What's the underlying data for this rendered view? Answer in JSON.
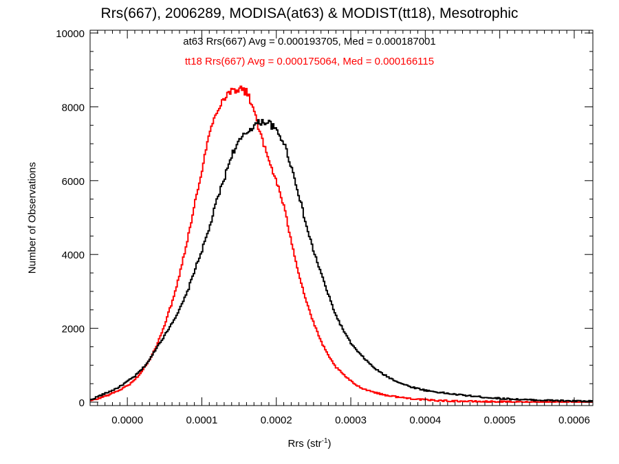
{
  "chart_data": {
    "type": "line",
    "title": "Rrs(667), 2006289, MODISA(at63) & MODIST(tt18), Mesotrophic",
    "xlabel_text": "Rrs (str",
    "xlabel_sup": "-1",
    "xlabel_close": ")",
    "ylabel": "Number of Observations",
    "xlim": [
      -5e-05,
      0.000625
    ],
    "ylim": [
      0,
      10000
    ],
    "x_ticks": [
      "0.0000",
      "0.0001",
      "0.0002",
      "0.0003",
      "0.0004",
      "0.0005",
      "0.0006"
    ],
    "y_ticks": [
      "0",
      "2000",
      "4000",
      "6000",
      "8000",
      "10000"
    ],
    "annotations": [
      {
        "text": "at63 Rrs(667) Avg = 0.000193705, Med = 0.000187001",
        "color": "#000000"
      },
      {
        "text": "tt18 Rrs(667) Avg = 0.000175064, Med = 0.000166115",
        "color": "#ff0000"
      }
    ],
    "series": [
      {
        "name": "at63",
        "color": "#000000",
        "x": [
          -5e-05,
          -4e-05,
          -3e-05,
          -2e-05,
          -1e-05,
          0.0,
          1e-05,
          2e-05,
          3e-05,
          4e-05,
          5e-05,
          6e-05,
          7e-05,
          8e-05,
          9e-05,
          0.0001,
          0.00011,
          0.00012,
          0.00013,
          0.00014,
          0.00015,
          0.00016,
          0.00017,
          0.00018,
          0.00019,
          0.0002,
          0.00021,
          0.00022,
          0.00023,
          0.00024,
          0.00025,
          0.00026,
          0.00027,
          0.00028,
          0.00029,
          0.0003,
          0.00031,
          0.00032,
          0.00033,
          0.00034,
          0.00035,
          0.00036,
          0.00037,
          0.00038,
          0.00039,
          0.0004,
          0.00042,
          0.00044,
          0.00046,
          0.00048,
          0.0005,
          0.00052,
          0.00054,
          0.00056,
          0.00058,
          0.0006,
          0.000625
        ],
        "y": [
          50,
          150,
          230,
          320,
          420,
          560,
          700,
          900,
          1150,
          1500,
          1800,
          2150,
          2500,
          2950,
          3550,
          4100,
          4700,
          5450,
          6050,
          6700,
          7050,
          7300,
          7500,
          7600,
          7580,
          7350,
          7050,
          6400,
          5650,
          4800,
          4100,
          3500,
          2900,
          2350,
          1950,
          1600,
          1350,
          1150,
          950,
          800,
          680,
          580,
          490,
          420,
          370,
          320,
          260,
          210,
          170,
          130,
          100,
          80,
          60,
          50,
          40,
          30,
          20
        ]
      },
      {
        "name": "tt18",
        "color": "#ff0000",
        "x": [
          -5e-05,
          -4e-05,
          -3e-05,
          -2e-05,
          -1e-05,
          0.0,
          1e-05,
          2e-05,
          3e-05,
          4e-05,
          5e-05,
          6e-05,
          7e-05,
          8e-05,
          9e-05,
          0.0001,
          0.00011,
          0.00012,
          0.00013,
          0.00014,
          0.00015,
          0.00016,
          0.00017,
          0.00018,
          0.00019,
          0.0002,
          0.00021,
          0.00022,
          0.00023,
          0.00024,
          0.00025,
          0.00026,
          0.00027,
          0.00028,
          0.00029,
          0.0003,
          0.00031,
          0.00032,
          0.00033,
          0.00034,
          0.00035,
          0.00036,
          0.00037,
          0.00038,
          0.00039,
          0.0004,
          0.00042,
          0.00044,
          0.00046,
          0.00048,
          0.0005,
          0.00052,
          0.00054,
          0.00056,
          0.00058,
          0.0006,
          0.000625
        ],
        "y": [
          30,
          90,
          160,
          240,
          330,
          440,
          600,
          850,
          1150,
          1550,
          2100,
          2700,
          3450,
          4350,
          5300,
          6300,
          7250,
          7900,
          8250,
          8450,
          8500,
          8400,
          7950,
          7150,
          6550,
          6000,
          5300,
          4400,
          3500,
          2750,
          2150,
          1650,
          1250,
          950,
          750,
          570,
          430,
          340,
          280,
          220,
          180,
          150,
          120,
          100,
          80,
          60,
          40,
          30,
          20,
          15,
          10,
          5,
          0,
          0,
          0,
          0,
          0
        ]
      }
    ]
  }
}
